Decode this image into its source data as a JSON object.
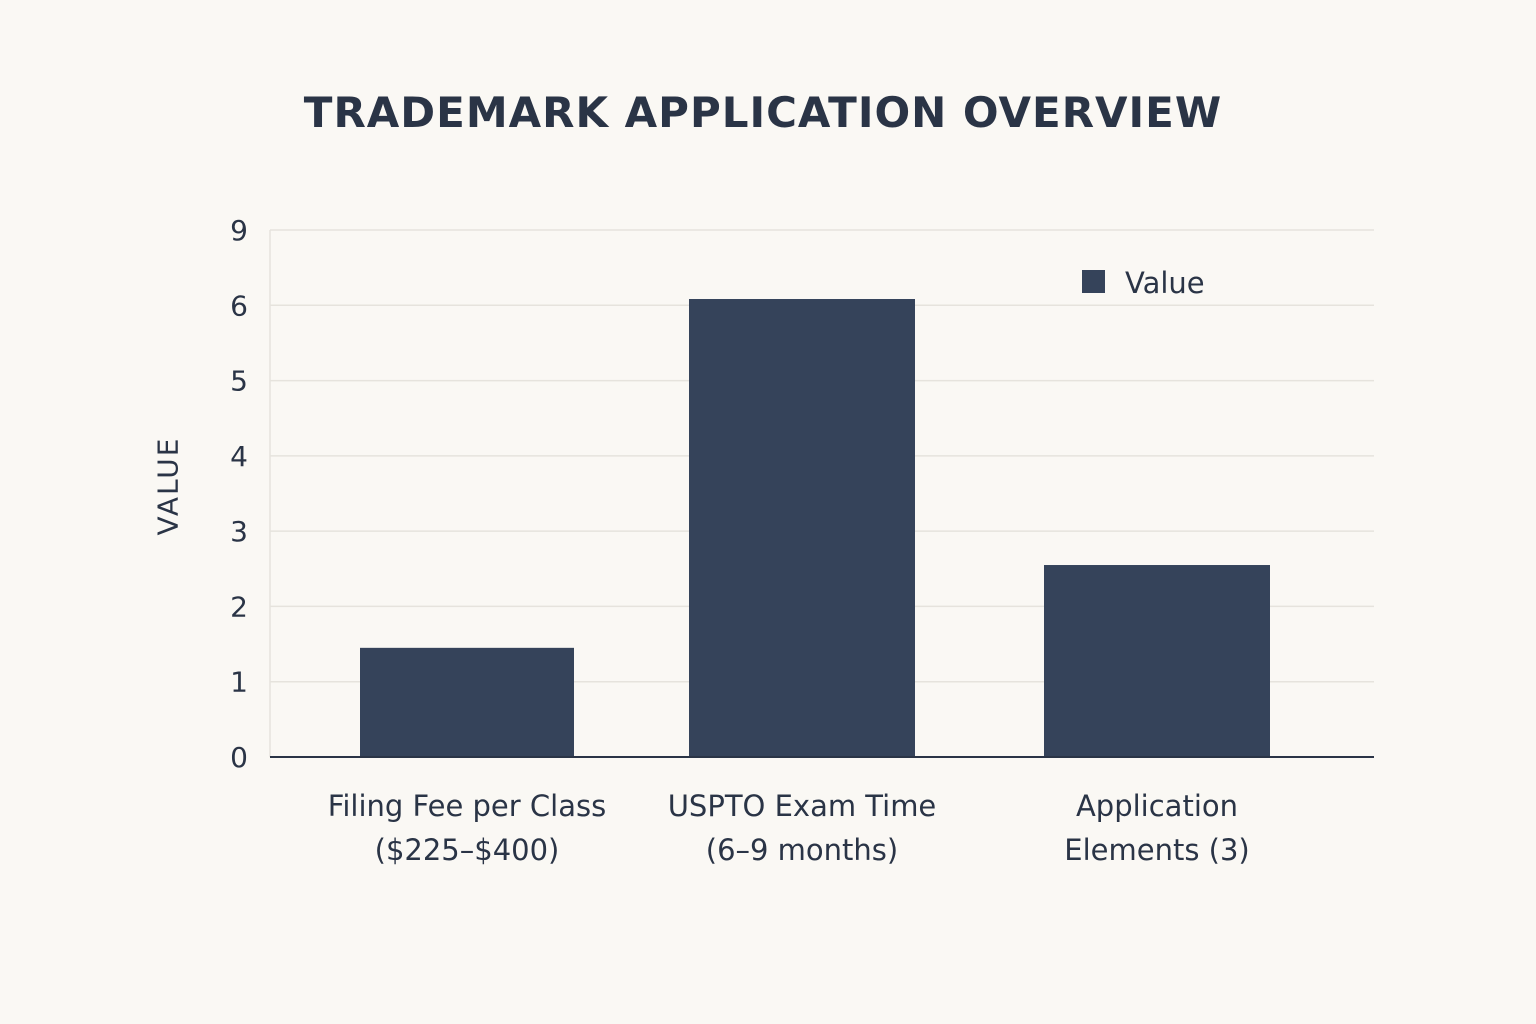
{
  "chart_data": {
    "type": "bar",
    "title": "TRADEMARK APPLICATION OVERVIEW",
    "xlabel": "",
    "ylabel": "VALUE",
    "categories": [
      [
        "Filing Fee per Class",
        "($225–$400)"
      ],
      [
        "USPTO Exam Time",
        "(6–9 months)"
      ],
      [
        "Application",
        "Elements (3)"
      ]
    ],
    "series": [
      {
        "name": "Value",
        "values": [
          1.45,
          6.25,
          2.55
        ]
      }
    ],
    "y_ticks": [
      "0",
      "1",
      "2",
      "3",
      "4",
      "5",
      "6",
      "9"
    ],
    "grid": true,
    "legend": "top-right",
    "colors": {
      "bar": "#35435a",
      "grid": "#e6e3dd",
      "axis": "#2a3446",
      "background": "#faf8f4"
    }
  }
}
